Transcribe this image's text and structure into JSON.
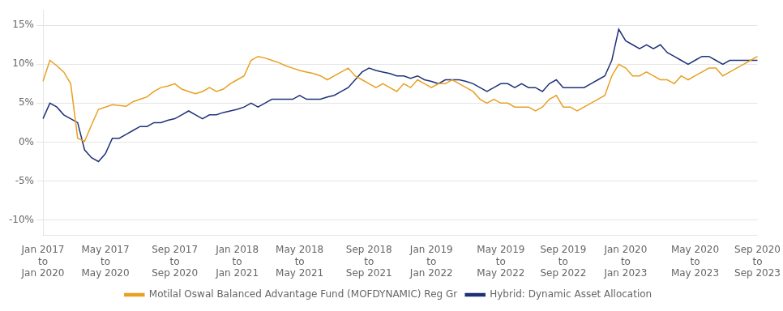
{
  "chart_data": {
    "type": "line",
    "categories": [
      "Jan 2017\nto\nJan 2020",
      null,
      null,
      null,
      null,
      null,
      null,
      null,
      null,
      "May 2017\nto\nMay 2020",
      null,
      null,
      null,
      null,
      null,
      null,
      null,
      null,
      null,
      "Sep 2017\nto\nSep 2020",
      null,
      null,
      null,
      null,
      null,
      null,
      null,
      null,
      "Jan 2018\nto\nJan 2021",
      null,
      null,
      null,
      null,
      null,
      null,
      null,
      null,
      "May 2018\nto\nMay 2021",
      null,
      null,
      null,
      null,
      null,
      null,
      null,
      null,
      null,
      "Sep 2018\nto\nSep 2021",
      null,
      null,
      null,
      null,
      null,
      null,
      null,
      null,
      "Jan 2019\nto\nJan 2022",
      null,
      null,
      null,
      null,
      null,
      null,
      null,
      null,
      null,
      "May 2019\nto\nMay 2022",
      null,
      null,
      null,
      null,
      null,
      null,
      null,
      null,
      "Sep 2019\nto\nSep 2022",
      null,
      null,
      null,
      null,
      null,
      null,
      null,
      null,
      "Jan 2020\nto\nJan 2023",
      null,
      null,
      null,
      null,
      null,
      null,
      null,
      null,
      null,
      "May 2020\nto\nMay 2023",
      null,
      null,
      null,
      null,
      null,
      null,
      null,
      null,
      "Sep 2020\nto\nSep 2023"
    ],
    "series": [
      {
        "name": "Motilal Oswal Balanced Advantage Fund (MOFDYNAMIC) Reg Gr",
        "color": "#E8A020",
        "values": [
          7.8,
          10.5,
          9.8,
          9.0,
          7.5,
          0.5,
          0.1,
          2.2,
          4.2,
          4.5,
          4.8,
          4.7,
          4.6,
          5.2,
          5.5,
          5.8,
          6.5,
          7.0,
          7.2,
          7.5,
          6.8,
          6.5,
          6.2,
          6.5,
          7.0,
          6.5,
          6.8,
          7.5,
          8.0,
          8.5,
          10.5,
          11.0,
          10.8,
          10.5,
          10.2,
          9.8,
          9.5,
          9.2,
          9.0,
          8.8,
          8.5,
          8.0,
          8.5,
          9.0,
          9.5,
          8.5,
          8.0,
          7.5,
          7.0,
          7.5,
          7.0,
          6.5,
          7.5,
          7.0,
          8.0,
          7.5,
          7.0,
          7.5,
          7.5,
          8.0,
          7.5,
          7.0,
          6.5,
          5.5,
          5.0,
          5.5,
          5.0,
          5.0,
          4.5,
          4.5,
          4.5,
          4.0,
          4.5,
          5.5,
          6.0,
          4.5,
          4.5,
          4.0,
          4.5,
          5.0,
          5.5,
          6.0,
          8.5,
          10.0,
          9.5,
          8.5,
          8.5,
          9.0,
          8.5,
          8.0,
          8.0,
          7.5,
          8.5,
          8.0,
          8.5,
          9.0,
          9.5,
          9.5,
          8.5,
          9.0,
          9.5,
          10.0,
          10.5,
          11.0
        ]
      },
      {
        "name": "Hybrid: Dynamic Asset Allocation",
        "color": "#1F3278",
        "values": [
          3.0,
          5.0,
          4.5,
          3.5,
          3.0,
          2.5,
          -1.0,
          -2.0,
          -2.5,
          -1.5,
          0.5,
          0.5,
          1.0,
          1.5,
          2.0,
          2.0,
          2.5,
          2.5,
          2.8,
          3.0,
          3.5,
          4.0,
          3.5,
          3.0,
          3.5,
          3.5,
          3.8,
          4.0,
          4.2,
          4.5,
          5.0,
          4.5,
          5.0,
          5.5,
          5.5,
          5.5,
          5.5,
          6.0,
          5.5,
          5.5,
          5.5,
          5.8,
          6.0,
          6.5,
          7.0,
          8.0,
          9.0,
          9.5,
          9.2,
          9.0,
          8.8,
          8.5,
          8.5,
          8.2,
          8.5,
          8.0,
          7.8,
          7.5,
          8.0,
          8.0,
          8.0,
          7.8,
          7.5,
          7.0,
          6.5,
          7.0,
          7.5,
          7.5,
          7.0,
          7.5,
          7.0,
          7.0,
          6.5,
          7.5,
          8.0,
          7.0,
          7.0,
          7.0,
          7.0,
          7.5,
          8.0,
          8.5,
          10.5,
          14.5,
          13.0,
          12.5,
          12.0,
          12.5,
          12.0,
          12.5,
          11.5,
          11.0,
          10.5,
          10.0,
          10.5,
          11.0,
          11.0,
          10.5,
          10.0,
          10.5,
          10.5,
          10.5,
          10.5,
          10.5
        ]
      }
    ],
    "ylim": [
      -12,
      17
    ],
    "yticks": [
      {
        "value": -10,
        "label": "-10%"
      },
      {
        "value": -5,
        "label": "-5%"
      },
      {
        "value": 0,
        "label": "0%"
      },
      {
        "value": 5,
        "label": "5%"
      },
      {
        "value": 10,
        "label": "10%"
      },
      {
        "value": 15,
        "label": "15%"
      }
    ],
    "grid": true,
    "legend": "bottom"
  }
}
